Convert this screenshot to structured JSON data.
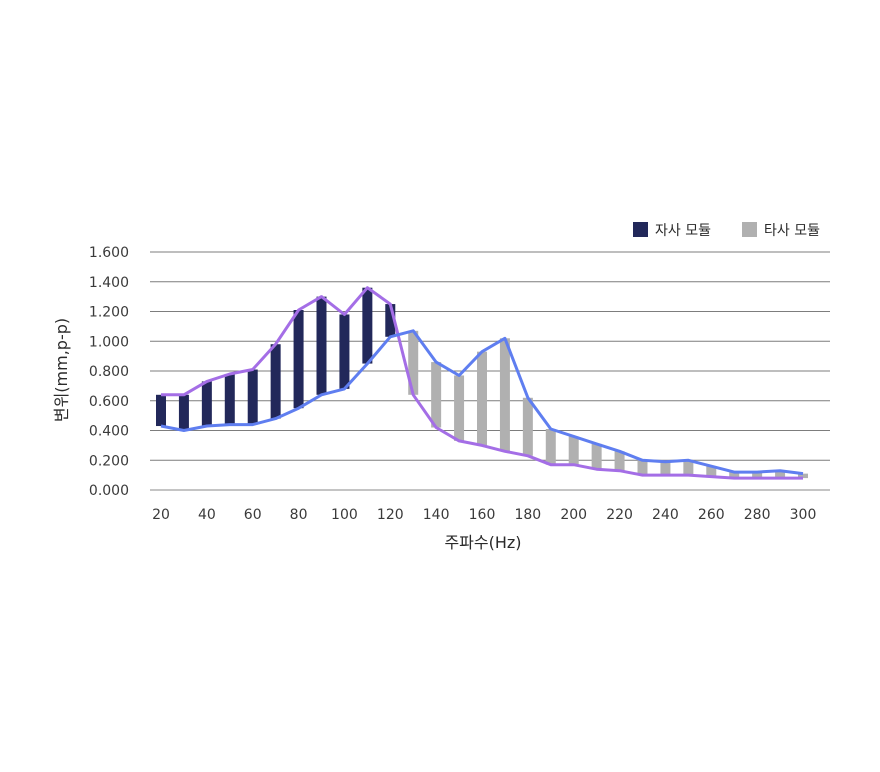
{
  "chart_data": {
    "type": "bar",
    "subtype": "floating-range-with-lines",
    "title": "",
    "xlabel": "주파수(Hz)",
    "ylabel": "변위(mm,p-p)",
    "ylim": [
      0,
      1.6
    ],
    "yticks": [
      "0.000",
      "0.200",
      "0.400",
      "0.600",
      "0.800",
      "1.000",
      "1.200",
      "1.400",
      "1.600"
    ],
    "xlim": [
      20,
      300
    ],
    "xticks": [
      "20",
      "40",
      "60",
      "80",
      "100",
      "120",
      "140",
      "160",
      "180",
      "200",
      "220",
      "240",
      "260",
      "280",
      "300"
    ],
    "grid": true,
    "legend_position": "top-right",
    "x": [
      20,
      30,
      40,
      50,
      60,
      70,
      80,
      90,
      100,
      110,
      120,
      130,
      140,
      150,
      160,
      170,
      180,
      190,
      200,
      210,
      220,
      230,
      240,
      250,
      260,
      270,
      280,
      290,
      300
    ],
    "series": [
      {
        "name": "자사 모듈",
        "color": "#22285a",
        "x": [
          20,
          30,
          40,
          50,
          60,
          70,
          80,
          90,
          100,
          110,
          120
        ],
        "low": [
          0.43,
          0.4,
          0.43,
          0.44,
          0.44,
          0.48,
          0.55,
          0.64,
          0.68,
          0.85,
          1.03
        ],
        "high": [
          0.64,
          0.64,
          0.73,
          0.78,
          0.81,
          0.98,
          1.21,
          1.3,
          1.18,
          1.36,
          1.25
        ]
      },
      {
        "name": "타사 모듈",
        "color": "#b0b0b0",
        "x": [
          130,
          140,
          150,
          160,
          170,
          180,
          190,
          200,
          210,
          220,
          230,
          240,
          250,
          260,
          270,
          280,
          290,
          300
        ],
        "low": [
          0.64,
          0.42,
          0.33,
          0.3,
          0.26,
          0.23,
          0.17,
          0.17,
          0.14,
          0.13,
          0.1,
          0.1,
          0.1,
          0.09,
          0.08,
          0.08,
          0.08,
          0.08
        ],
        "high": [
          1.07,
          0.86,
          0.77,
          0.93,
          1.02,
          0.62,
          0.41,
          0.36,
          0.31,
          0.26,
          0.2,
          0.19,
          0.2,
          0.16,
          0.12,
          0.12,
          0.13,
          0.11
        ]
      }
    ],
    "lines": [
      {
        "name": "upper",
        "color": "#a46ee6",
        "values": [
          0.64,
          0.64,
          0.73,
          0.78,
          0.81,
          0.98,
          1.21,
          1.3,
          1.18,
          1.36,
          1.25,
          0.64,
          0.42,
          0.33,
          0.3,
          0.26,
          0.23,
          0.17,
          0.17,
          0.14,
          0.13,
          0.1,
          0.1,
          0.1,
          0.09,
          0.08,
          0.08,
          0.08,
          0.08
        ]
      },
      {
        "name": "lower",
        "color": "#5f7ef0",
        "values": [
          0.43,
          0.4,
          0.43,
          0.44,
          0.44,
          0.48,
          0.55,
          0.64,
          0.68,
          0.85,
          1.03,
          1.07,
          0.86,
          0.77,
          0.93,
          1.02,
          0.62,
          0.41,
          0.36,
          0.31,
          0.26,
          0.2,
          0.19,
          0.2,
          0.16,
          0.12,
          0.12,
          0.13,
          0.11
        ]
      }
    ]
  }
}
